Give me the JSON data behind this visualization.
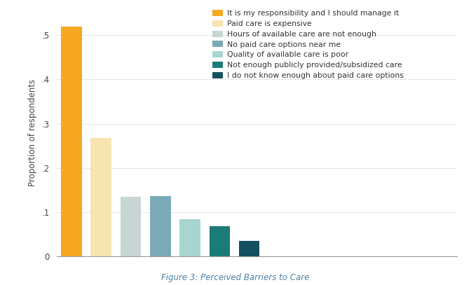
{
  "values": [
    0.52,
    0.267,
    0.135,
    0.137,
    0.085,
    0.068,
    0.036
  ],
  "colors": [
    "#F5A820",
    "#F7E4B0",
    "#C8D5D5",
    "#7AAAB8",
    "#A8D5D0",
    "#1B7B78",
    "#155060"
  ],
  "labels": [
    "It is my responsibility and I should manage it",
    "Paid care is expensive",
    "Hours of available care are not enough",
    "No paid care options near me",
    "Quality of available care is poor",
    "Not enough publicly provided/subsidized care",
    "I do not know enough about paid care options"
  ],
  "ylabel": "Proportion of respondents",
  "yticks": [
    0,
    0.1,
    0.2,
    0.3,
    0.4,
    0.5
  ],
  "ytick_labels": [
    "0",
    ".1",
    ".2",
    ".3",
    ".4",
    ".5"
  ],
  "ylim": [
    0,
    0.56
  ],
  "caption": "Figure 3: Perceived Barriers to Care",
  "background_color": "#FFFFFF",
  "grid_color": "#CCCCCC",
  "bar_width": 0.7,
  "figsize": [
    6.72,
    4.07
  ],
  "dpi": 100
}
